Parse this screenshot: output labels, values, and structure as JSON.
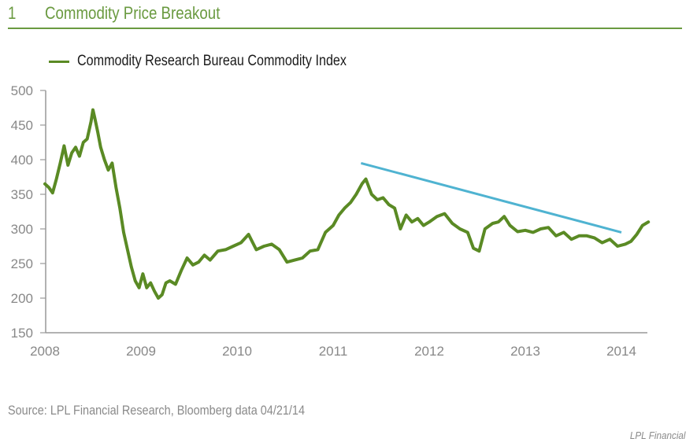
{
  "header": {
    "number": "1",
    "title": "Commodity Price Breakout"
  },
  "colors": {
    "accent": "#6a9a40",
    "series": "#5a8a24",
    "trendline": "#4fb3d1",
    "axis": "#999999"
  },
  "source": "Source: LPL Financial Research, Bloomberg data   04/21/14",
  "brand": "LPL Financial",
  "chart_data": {
    "type": "line",
    "title": "Commodity Price Breakout",
    "xlabel": "",
    "ylabel": "",
    "legend": "top-left",
    "grid": false,
    "xlim": [
      2008.0,
      2014.3
    ],
    "ylim": [
      150,
      500
    ],
    "yticks": [
      150,
      200,
      250,
      300,
      350,
      400,
      450,
      500
    ],
    "xticks": [
      2008,
      2009,
      2010,
      2011,
      2012,
      2013,
      2014
    ],
    "series": [
      {
        "name": "Commodity Research Bureau Commodity Index",
        "x": [
          2008.0,
          2008.04,
          2008.08,
          2008.12,
          2008.16,
          2008.2,
          2008.24,
          2008.28,
          2008.32,
          2008.36,
          2008.4,
          2008.44,
          2008.48,
          2008.5,
          2008.52,
          2008.55,
          2008.58,
          2008.62,
          2008.66,
          2008.7,
          2008.74,
          2008.78,
          2008.82,
          2008.86,
          2008.9,
          2008.94,
          2008.98,
          2009.02,
          2009.06,
          2009.1,
          2009.14,
          2009.18,
          2009.22,
          2009.26,
          2009.3,
          2009.36,
          2009.42,
          2009.48,
          2009.54,
          2009.6,
          2009.66,
          2009.72,
          2009.8,
          2009.88,
          2009.96,
          2010.04,
          2010.12,
          2010.2,
          2010.28,
          2010.36,
          2010.44,
          2010.52,
          2010.6,
          2010.68,
          2010.76,
          2010.84,
          2010.92,
          2011.0,
          2011.06,
          2011.12,
          2011.18,
          2011.24,
          2011.3,
          2011.34,
          2011.4,
          2011.46,
          2011.52,
          2011.58,
          2011.64,
          2011.7,
          2011.76,
          2011.82,
          2011.88,
          2011.94,
          2012.0,
          2012.08,
          2012.16,
          2012.24,
          2012.32,
          2012.4,
          2012.46,
          2012.52,
          2012.58,
          2012.66,
          2012.72,
          2012.78,
          2012.84,
          2012.92,
          2013.0,
          2013.08,
          2013.16,
          2013.24,
          2013.32,
          2013.4,
          2013.48,
          2013.56,
          2013.64,
          2013.72,
          2013.8,
          2013.88,
          2013.96,
          2014.04,
          2014.1,
          2014.16,
          2014.22,
          2014.28
        ],
        "values": [
          365,
          360,
          352,
          372,
          395,
          420,
          392,
          410,
          418,
          405,
          425,
          430,
          455,
          472,
          460,
          440,
          418,
          400,
          385,
          395,
          360,
          330,
          295,
          270,
          245,
          225,
          215,
          235,
          215,
          222,
          210,
          200,
          205,
          222,
          225,
          220,
          240,
          258,
          248,
          252,
          262,
          255,
          268,
          270,
          275,
          280,
          292,
          270,
          275,
          278,
          270,
          252,
          255,
          258,
          268,
          270,
          295,
          305,
          320,
          330,
          338,
          350,
          365,
          372,
          350,
          342,
          345,
          335,
          330,
          300,
          320,
          310,
          315,
          305,
          310,
          318,
          322,
          308,
          300,
          295,
          272,
          268,
          300,
          308,
          310,
          318,
          305,
          296,
          298,
          295,
          300,
          302,
          290,
          295,
          285,
          290,
          290,
          287,
          280,
          285,
          275,
          278,
          282,
          292,
          305,
          310
        ]
      }
    ],
    "annotations": [
      {
        "type": "trendline",
        "x": [
          2011.29,
          2014.0
        ],
        "y": [
          395,
          295
        ]
      }
    ]
  }
}
